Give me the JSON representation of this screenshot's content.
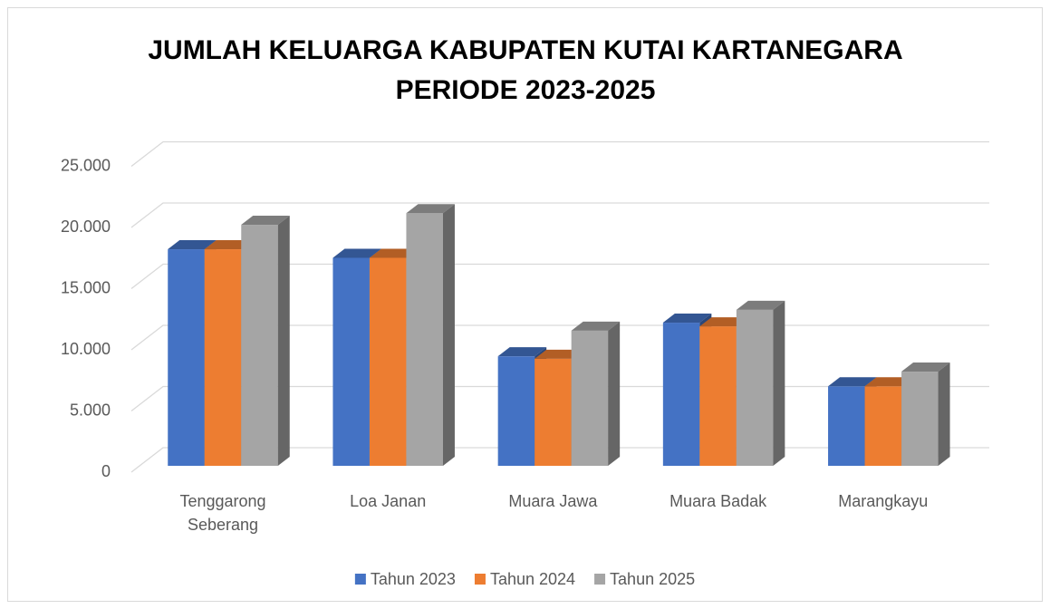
{
  "chart_data": {
    "type": "bar3d",
    "title": [
      "JUMLAH KELUARGA KABUPATEN KUTAI KARTANEGARA",
      "PERIODE 2023-2025"
    ],
    "categories": [
      "Tenggarong Seberang",
      "Loa Janan",
      "Muara Jawa",
      "Muara Badak",
      "Marangkayu"
    ],
    "series": [
      {
        "name": "Tahun 2023",
        "color": "#4472c4",
        "values": [
          17700,
          17000,
          8950,
          11700,
          6500
        ]
      },
      {
        "name": "Tahun 2024",
        "color": "#ed7d31",
        "values": [
          17700,
          17000,
          8750,
          11400,
          6500
        ]
      },
      {
        "name": "Tahun 2025",
        "color": "#a5a5a5",
        "values": [
          19700,
          20650,
          11050,
          12750,
          7700
        ]
      }
    ],
    "ylim": [
      0,
      25000
    ],
    "yticks": [
      0,
      {
        "value": 5000,
        "label": "5.000"
      },
      {
        "value": 10000,
        "label": "10.000"
      },
      {
        "value": 15000,
        "label": "15.000"
      },
      {
        "value": 20000,
        "label": "20.000"
      },
      {
        "value": 25000,
        "label": "25.000"
      }
    ],
    "grid": true,
    "legend": "bottom"
  }
}
